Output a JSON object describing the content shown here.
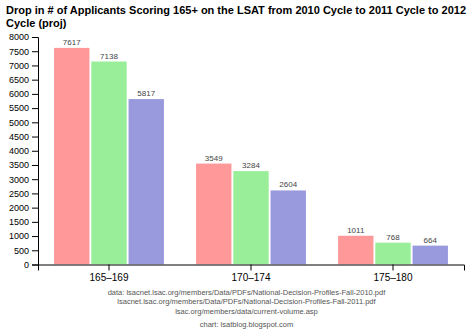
{
  "chart_data": {
    "type": "bar",
    "title": "Drop in # of Applicants Scoring 165+ on the LSAT from 2010 Cycle to 2011 Cycle to 2012 Cycle (proj)",
    "categories": [
      "165–169",
      "170–174",
      "175–180"
    ],
    "series": [
      {
        "color": "#FF9999",
        "values": [
          7617,
          3549,
          1011
        ]
      },
      {
        "color": "#99EE99",
        "values": [
          7138,
          3284,
          768
        ]
      },
      {
        "color": "#9999DD",
        "values": [
          5817,
          2604,
          664
        ]
      }
    ],
    "ylim": [
      0,
      8000
    ],
    "yticks": [
      0,
      500,
      1000,
      1500,
      2000,
      2500,
      3000,
      3500,
      4000,
      4500,
      5000,
      5500,
      6000,
      6500,
      7000,
      7500,
      8000
    ],
    "data_labels": true,
    "grid": false,
    "annotations": [
      "data: lsacnet.lsac.org/members/Data/PDFs/National-Decision-Profiles-Fall-2010.pdf",
      "lsacnet.lsac.org/members/Data/PDFs/National-Decision-Profiles-Fall-2011.pdf",
      "lsac.org/members/data/current-volume.asp",
      "chart: lsatblog.blogspot.com"
    ]
  }
}
